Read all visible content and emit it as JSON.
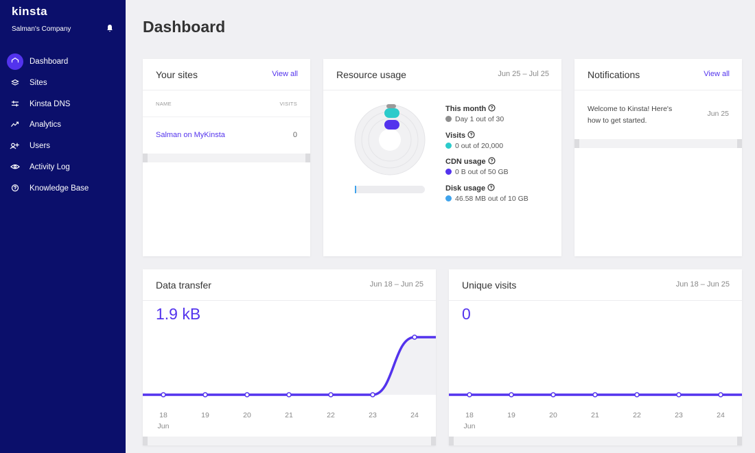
{
  "sidebar": {
    "brand": "kinsta",
    "company": "Salman's Company",
    "nav": [
      "Dashboard",
      "Sites",
      "Kinsta DNS",
      "Analytics",
      "Users",
      "Activity Log",
      "Knowledge Base"
    ]
  },
  "header": {
    "title": "Dashboard"
  },
  "sites": {
    "title": "Your sites",
    "link": "View all",
    "columns": [
      "NAME",
      "VISITS"
    ],
    "rows": [
      [
        "Salman on MyKinsta",
        "0"
      ]
    ]
  },
  "resource": {
    "title": "Resource usage",
    "range": "Jun 25 – Jul 25",
    "items": [
      {
        "label": "This month",
        "detail": "Day 1 out of 30",
        "color": "#8e8e8e"
      },
      {
        "label": "Visits",
        "detail": "0 out of 20,000",
        "color": "#2ccbcb"
      },
      {
        "label": "CDN usage",
        "detail": "0 B out of 50 GB",
        "color": "#5333ed"
      },
      {
        "label": "Disk usage",
        "detail": "46.58 MB out of 10 GB",
        "color": "#3fa3ec"
      }
    ]
  },
  "notifications": {
    "title": "Notifications",
    "link": "View all",
    "items": [
      {
        "text": "Welcome to Kinsta! Here's how to get started.",
        "date": "Jun 25"
      }
    ]
  },
  "charts": [
    {
      "title": "Data transfer",
      "range": "Jun 18 – Jun 25",
      "total": "1.9 kB",
      "x": [
        "18",
        "19",
        "20",
        "21",
        "22",
        "23",
        "24"
      ],
      "month": "Jun",
      "values": [
        0,
        0,
        0,
        0,
        0,
        0,
        1.9
      ],
      "color": "#5333ed"
    },
    {
      "title": "Unique visits",
      "range": "Jun 18 – Jun 25",
      "total": "0",
      "x": [
        "18",
        "19",
        "20",
        "21",
        "22",
        "23",
        "24"
      ],
      "month": "Jun",
      "values": [
        0,
        0,
        0,
        0,
        0,
        0,
        0
      ],
      "color": "#5333ed"
    }
  ]
}
